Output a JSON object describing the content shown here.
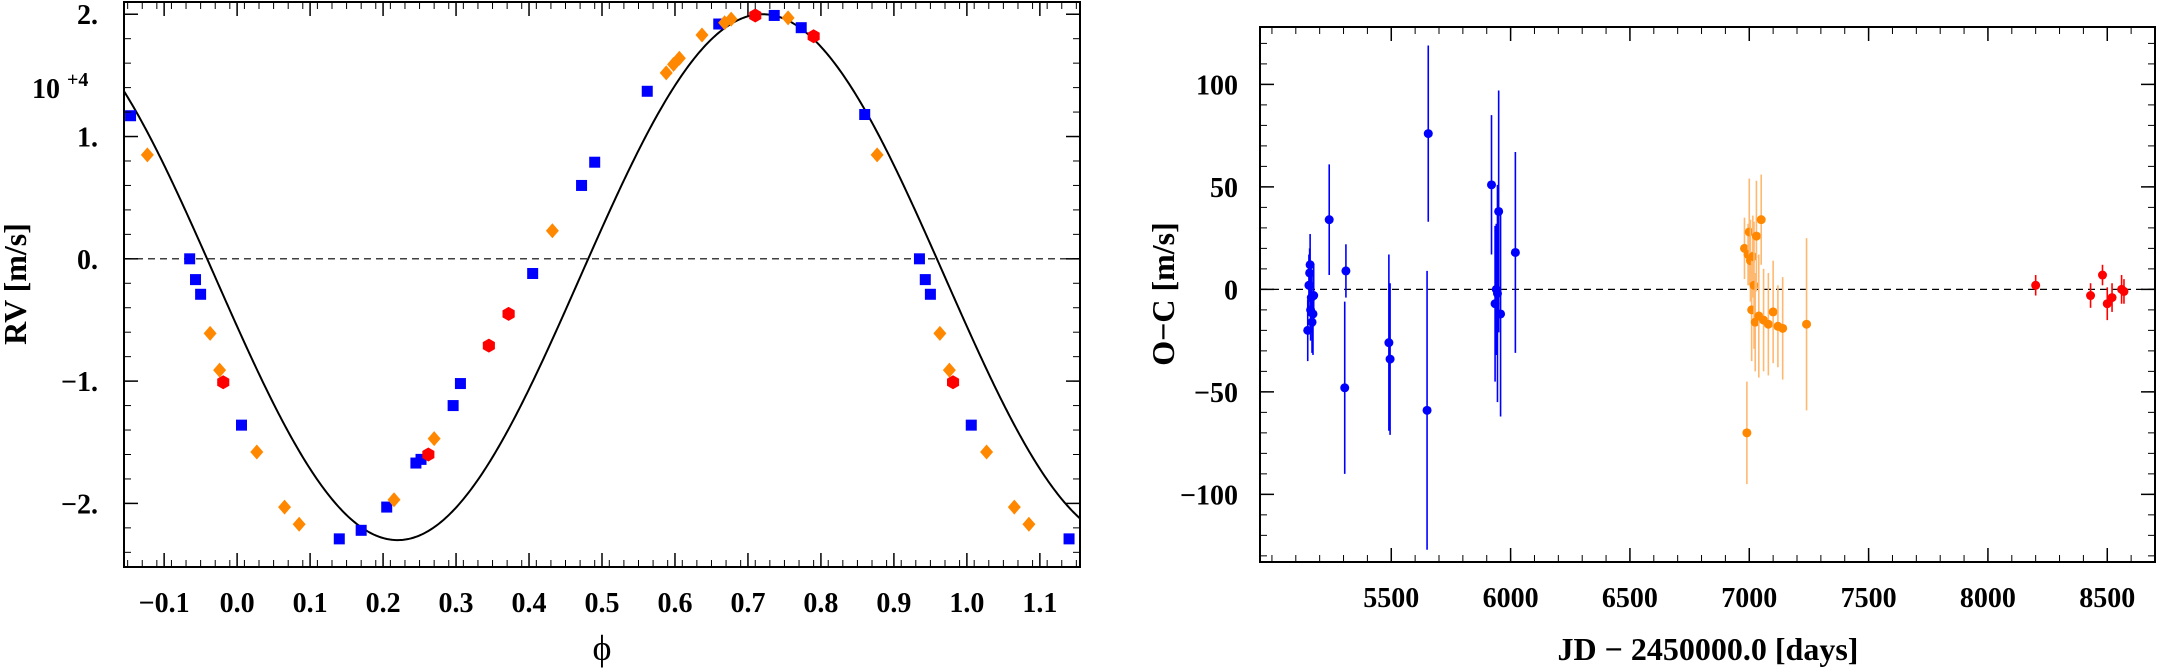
{
  "chart_data": [
    {
      "type": "scatter",
      "title": "",
      "xlabel": "ϕ",
      "ylabel": "RV [m/s]",
      "y_scale_note": "10",
      "y_scale_exponent": "+4",
      "xlim": [
        -0.155,
        1.155
      ],
      "ylim": [
        -2.52,
        2.1
      ],
      "xticks": [
        -0.1,
        0.0,
        0.1,
        0.2,
        0.3,
        0.4,
        0.5,
        0.6,
        0.7,
        0.8,
        0.9,
        1.0,
        1.1
      ],
      "xtick_labels": [
        "−0.1",
        "0.0",
        "0.1",
        "0.2",
        "0.3",
        "0.4",
        "0.5",
        "0.6",
        "0.7",
        "0.8",
        "0.9",
        "1.0",
        "1.1"
      ],
      "yticks": [
        -2,
        -1,
        0,
        1,
        2
      ],
      "ytick_labels": [
        "−2.",
        "−1.",
        "0.",
        "1.",
        "2."
      ],
      "zero_line": true,
      "model": {
        "amplitude": 2.15,
        "offset": -0.15,
        "peak_phase": 0.72,
        "eccentricity": 0.0,
        "color": "#000000"
      },
      "series": [
        {
          "name": "blue",
          "marker": "square",
          "color": "#0000ff",
          "x": [
            -0.146,
            -0.065,
            -0.057,
            -0.05,
            0.006,
            0.14,
            0.17,
            0.205,
            0.245,
            0.252,
            0.296,
            0.306,
            0.405,
            0.472,
            0.49,
            0.562,
            0.66,
            0.736,
            0.773,
            0.86,
            0.935,
            0.943,
            0.95,
            1.006,
            1.14
          ],
          "y": [
            1.17,
            0.0,
            -0.17,
            -0.29,
            -1.36,
            -2.29,
            -2.22,
            -2.03,
            -1.67,
            -1.64,
            -1.2,
            -1.02,
            -0.12,
            0.6,
            0.79,
            1.37,
            1.92,
            1.99,
            1.89,
            1.18,
            0.0,
            -0.17,
            -0.29,
            -1.36,
            -2.29
          ]
        },
        {
          "name": "orange",
          "marker": "diamond",
          "color": "#ff8800",
          "x": [
            -0.123,
            -0.037,
            -0.024,
            0.027,
            0.065,
            0.085,
            0.215,
            0.27,
            0.432,
            0.588,
            0.598,
            0.606,
            0.637,
            0.668,
            0.677,
            0.755,
            0.877,
            0.963,
            0.976,
            1.027,
            1.065,
            1.085
          ],
          "y": [
            0.85,
            -0.61,
            -0.91,
            -1.58,
            -2.03,
            -2.17,
            -1.97,
            -1.47,
            0.23,
            1.52,
            1.59,
            1.64,
            1.83,
            1.93,
            1.96,
            1.97,
            0.85,
            -0.61,
            -0.91,
            -1.58,
            -2.03,
            -2.17
          ]
        },
        {
          "name": "red",
          "marker": "circle",
          "color": "#ff0000",
          "x": [
            -0.019,
            0.262,
            0.345,
            0.372,
            0.71,
            0.79,
            0.981
          ],
          "y": [
            -1.01,
            -1.6,
            -0.71,
            -0.45,
            1.99,
            1.82,
            -1.01
          ]
        }
      ]
    },
    {
      "type": "scatter",
      "title": "",
      "xlabel": "JD − 2450000.0 [days]",
      "ylabel": "O−C [m/s]",
      "xlim": [
        4950,
        8700
      ],
      "ylim": [
        -133,
        128
      ],
      "xticks": [
        5500,
        6000,
        6500,
        7000,
        7500,
        8000,
        8500
      ],
      "xtick_labels": [
        "5500",
        "6000",
        "6500",
        "7000",
        "7500",
        "8000",
        "8500"
      ],
      "yticks": [
        -100,
        -50,
        0,
        50,
        100
      ],
      "ytick_labels": [
        "−100",
        "−50",
        "0",
        "50",
        "100"
      ],
      "zero_line": true,
      "series": [
        {
          "name": "blue",
          "color": "#0000ff",
          "x": [
            5150,
            5155,
            5158,
            5160,
            5162,
            5165,
            5168,
            5172,
            5175,
            5240,
            5305,
            5310,
            5490,
            5495,
            5650,
            5655,
            5920,
            5935,
            5940,
            5945,
            5950,
            5958,
            6020
          ],
          "y": [
            -20,
            2,
            8,
            12,
            -10,
            -4,
            -16,
            -12,
            -3,
            34,
            -48,
            9,
            -26,
            -34,
            -59,
            76,
            51,
            -7,
            0,
            -2,
            38,
            -12,
            18
          ],
          "err": [
            15,
            15,
            12,
            15,
            15,
            12,
            15,
            20,
            15,
            27,
            42,
            13,
            43,
            37,
            68,
            43,
            34,
            38,
            32,
            53,
            59,
            50,
            49
          ]
        },
        {
          "name": "orange",
          "color": "#ff8800",
          "x": [
            6980,
            6990,
            6995,
            7000,
            7005,
            7010,
            7015,
            7020,
            7025,
            7030,
            7040,
            7050,
            7060,
            7080,
            7100,
            7120,
            7140,
            7240
          ],
          "y": [
            20,
            -70,
            17,
            28,
            14,
            -10,
            16,
            2,
            -16,
            26,
            -13,
            34,
            -15,
            -17,
            -11,
            -18,
            -19,
            -17
          ],
          "err": [
            15,
            25,
            15,
            26,
            20,
            25,
            20,
            31,
            24,
            27,
            30,
            22,
            25,
            25,
            25,
            20,
            25,
            42
          ]
        },
        {
          "name": "red",
          "color": "#ff0000",
          "x": [
            8200,
            8430,
            8480,
            8500,
            8520,
            8560,
            8570
          ],
          "y": [
            2,
            -3,
            7,
            -7,
            -4,
            0,
            -1
          ],
          "err": [
            5,
            6,
            5,
            8,
            7,
            7,
            6
          ]
        }
      ]
    }
  ]
}
